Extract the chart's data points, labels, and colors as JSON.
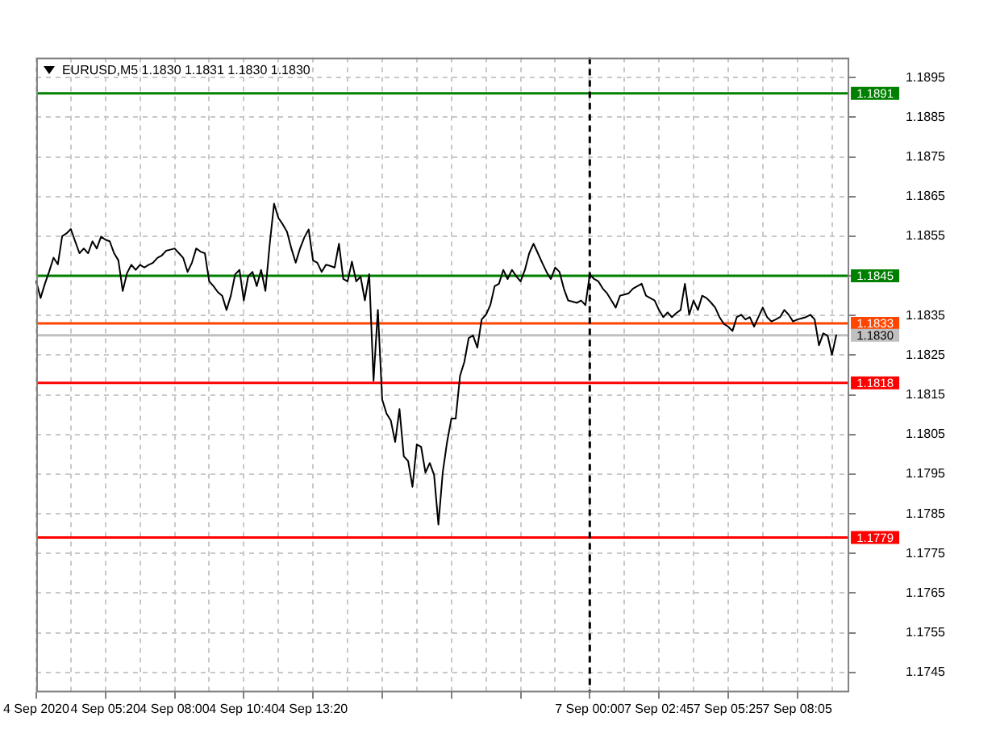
{
  "chart_data": {
    "type": "line",
    "title": "EURUSD,M5 1.1830 1.1831 1.1830 1.1830",
    "categories": [
      "4 Sep 2020",
      null,
      null,
      null,
      null,
      null,
      null,
      null,
      null,
      null,
      null,
      null,
      null,
      null,
      null,
      null,
      "4 Sep 05:20",
      null,
      null,
      null,
      null,
      null,
      null,
      null,
      null,
      null,
      null,
      null,
      null,
      null,
      null,
      null,
      "4 Sep 08:00",
      null,
      null,
      null,
      null,
      null,
      null,
      null,
      null,
      null,
      null,
      null,
      null,
      null,
      null,
      null,
      "4 Sep 10:40",
      null,
      null,
      null,
      null,
      null,
      null,
      null,
      null,
      null,
      null,
      null,
      null,
      null,
      null,
      null,
      "4 Sep 13:20",
      null,
      null,
      null,
      null,
      null,
      null,
      null,
      null,
      null,
      null,
      null,
      null,
      null,
      null,
      null,
      null,
      null,
      null,
      null,
      null,
      null,
      null,
      null,
      null,
      null,
      null,
      null,
      null,
      null,
      null,
      null,
      null,
      null,
      null,
      null,
      null,
      null,
      null,
      null,
      null,
      null,
      null,
      null,
      null,
      null,
      null,
      null,
      null,
      null,
      null,
      null,
      null,
      null,
      null,
      null,
      null,
      null,
      null,
      null,
      null,
      null,
      null,
      null,
      "7 Sep 00:00",
      null,
      null,
      null,
      null,
      null,
      null,
      null,
      null,
      null,
      null,
      null,
      null,
      null,
      null,
      null,
      "7 Sep 02:45",
      null,
      null,
      null,
      null,
      null,
      null,
      null,
      null,
      null,
      null,
      null,
      null,
      null,
      null,
      null,
      "7 Sep 05:25",
      null,
      null,
      null,
      null,
      null,
      null,
      null,
      null,
      null,
      null,
      null,
      null,
      null,
      null,
      null,
      "7 Sep 08:05",
      null,
      null,
      null,
      null,
      null,
      null,
      null,
      null,
      null,
      null,
      null,
      null
    ],
    "values": [
      1.18436,
      1.18394,
      1.1843,
      1.18461,
      1.18496,
      1.18479,
      1.1855,
      1.18557,
      1.18568,
      1.18537,
      1.18507,
      1.18519,
      1.18507,
      1.18537,
      1.18519,
      1.18549,
      1.18541,
      1.18537,
      1.18507,
      1.18489,
      1.18412,
      1.18457,
      1.18478,
      1.18465,
      1.18478,
      1.18471,
      1.18478,
      1.18483,
      1.18495,
      1.18501,
      1.18513,
      1.18516,
      1.18519,
      1.18507,
      1.18495,
      1.1846,
      1.18483,
      1.18519,
      1.18511,
      1.18507,
      1.18436,
      1.18424,
      1.18409,
      1.184,
      1.18364,
      1.184,
      1.18454,
      1.18465,
      1.18388,
      1.18448,
      1.1846,
      1.18424,
      1.18465,
      1.18412,
      1.18531,
      1.18632,
      1.18596,
      1.1858,
      1.18561,
      1.18519,
      1.18483,
      1.18519,
      1.18547,
      1.18567,
      1.18489,
      1.18483,
      1.1846,
      1.18478,
      1.18475,
      1.18471,
      1.18531,
      1.18442,
      1.18436,
      1.18486,
      1.18436,
      1.18448,
      1.18388,
      1.18454,
      1.18186,
      1.18364,
      1.18138,
      1.18103,
      1.18085,
      1.18031,
      1.18114,
      1.17995,
      1.17983,
      1.17918,
      1.18025,
      1.18019,
      1.17954,
      1.17978,
      1.17948,
      1.17823,
      1.17954,
      1.18031,
      1.1809,
      1.1809,
      1.18198,
      1.18233,
      1.18293,
      1.183,
      1.18269,
      1.1834,
      1.18352,
      1.18376,
      1.18424,
      1.1843,
      1.18465,
      1.18442,
      1.18465,
      1.18449,
      1.18436,
      1.18465,
      1.18507,
      1.18531,
      1.18507,
      1.18483,
      1.1846,
      1.18442,
      1.18471,
      1.1846,
      1.18418,
      1.18388,
      1.18385,
      1.18382,
      1.18388,
      1.18376,
      1.18454,
      1.18442,
      1.18436,
      1.18418,
      1.18406,
      1.18388,
      1.1837,
      1.184,
      1.18403,
      1.18406,
      1.18418,
      1.18424,
      1.1843,
      1.184,
      1.18394,
      1.18388,
      1.18364,
      1.18346,
      1.18358,
      1.18346,
      1.18356,
      1.18364,
      1.1843,
      1.18352,
      1.18388,
      1.18364,
      1.184,
      1.18394,
      1.18383,
      1.1837,
      1.18346,
      1.18329,
      1.18322,
      1.18311,
      1.18346,
      1.18352,
      1.1834,
      1.18346,
      1.18322,
      1.18346,
      1.1837,
      1.18346,
      1.18335,
      1.1834,
      1.18346,
      1.18364,
      1.18352,
      1.18335,
      1.1834,
      1.18343,
      1.18346,
      1.18352,
      1.1834,
      1.18275,
      1.18305,
      1.18299,
      1.18251,
      1.183,
      null,
      null,
      null
    ],
    "color": "#000000",
    "ylim": [
      1.174,
      1.19
    ],
    "yticks": [
      1.1745,
      1.1755,
      1.1765,
      1.1775,
      1.1785,
      1.1795,
      1.1805,
      1.1815,
      1.1825,
      1.1835,
      {
        "value": 1.1845,
        "label": null
      },
      1.1855,
      1.1865,
      1.1875,
      1.1885,
      1.1895
    ],
    "grid": true,
    "ref_lines": [
      {
        "axis": "y",
        "value": 1.1891,
        "label": "1.1891",
        "color": "#008000"
      },
      {
        "axis": "y",
        "value": 1.1845,
        "label": "1.1845",
        "color": "#008000"
      },
      {
        "axis": "y",
        "value": 1.1833,
        "label": "1.1833",
        "color": "#ff4500"
      },
      {
        "axis": "y",
        "value": 1.183,
        "label": "1.1830",
        "color": "#c0c0c0"
      },
      {
        "axis": "y",
        "value": 1.1818,
        "label": "1.1818",
        "color": "#ff0000"
      },
      {
        "axis": "y",
        "value": 1.1779,
        "label": "1.1779",
        "color": "#ff0000"
      },
      {
        "axis": "x",
        "value": "7 Sep 00:00",
        "color": "#000000",
        "line_style": "dashed"
      }
    ]
  }
}
